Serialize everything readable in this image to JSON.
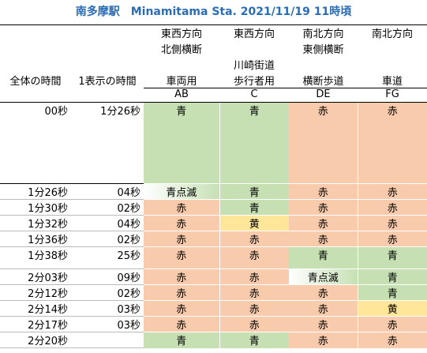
{
  "title": "南多摩駅　Minamitama Sta. 2021/11/19 11時頃",
  "headers": {
    "col_total": "全体の時間",
    "col_step": "1表示の時間",
    "ab": {
      "line1": "東西方向",
      "line2": "北側横断",
      "line3": "",
      "name": "車両用",
      "code": "AB"
    },
    "c": {
      "line1": "東西方向",
      "line2": "",
      "line3": "川崎街道",
      "name": "歩行者用",
      "code": "C"
    },
    "de": {
      "line1": "南北方向",
      "line2": "東側横断",
      "line3": "",
      "name": "横断歩道",
      "code": "DE"
    },
    "fg": {
      "line1": "南北方向",
      "line2": "",
      "line3": "",
      "name": "車道",
      "code": "FG"
    }
  },
  "colors": {
    "green": "#c6e0b4",
    "red": "#f8cbad",
    "yellow": "#ffe699",
    "title": "#2a6db5"
  },
  "rows": [
    {
      "total": "00秒",
      "step": "1分26秒",
      "ab": "青",
      "c": "青",
      "de": "赤",
      "fg": "赤"
    },
    {
      "total": "1分26秒",
      "step": "04秒",
      "ab": "青点滅",
      "c": "青",
      "de": "赤",
      "fg": "赤"
    },
    {
      "total": "1分30秒",
      "step": "02秒",
      "ab": "赤",
      "c": "青",
      "de": "赤",
      "fg": "赤"
    },
    {
      "total": "1分32秒",
      "step": "04秒",
      "ab": "赤",
      "c": "黄",
      "de": "赤",
      "fg": "赤"
    },
    {
      "total": "1分36秒",
      "step": "02秒",
      "ab": "赤",
      "c": "赤",
      "de": "赤",
      "fg": "赤"
    },
    {
      "total": "1分38秒",
      "step": "25秒",
      "ab": "赤",
      "c": "赤",
      "de": "青",
      "fg": "青"
    },
    {
      "total": "2分03秒",
      "step": "09秒",
      "ab": "赤",
      "c": "赤",
      "de": "青点滅",
      "fg": "青"
    },
    {
      "total": "2分12秒",
      "step": "02秒",
      "ab": "赤",
      "c": "赤",
      "de": "赤",
      "fg": "青"
    },
    {
      "total": "2分14秒",
      "step": "03秒",
      "ab": "赤",
      "c": "赤",
      "de": "赤",
      "fg": "黄"
    },
    {
      "total": "2分17秒",
      "step": "03秒",
      "ab": "赤",
      "c": "赤",
      "de": "赤",
      "fg": "赤"
    },
    {
      "total": "2分20秒",
      "step": "",
      "ab": "青",
      "c": "青",
      "de": "赤",
      "fg": "赤"
    }
  ]
}
